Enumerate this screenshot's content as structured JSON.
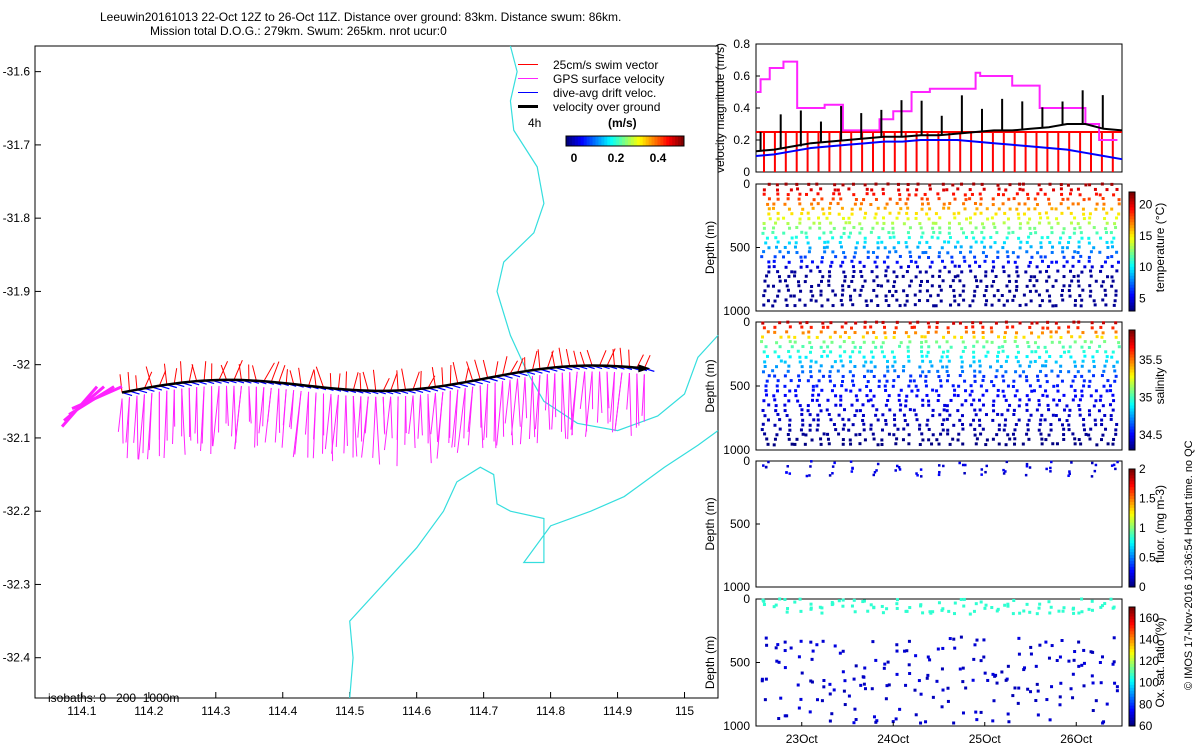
{
  "header": {
    "line1": "Leeuwin20161013 22-Oct 12Z to 26-Oct 11Z. Distance over ground: 83km. Distance swum: 86km.",
    "line2": "Mission total D.O.G.: 279km. Swum: 265km. nrot ucur:0"
  },
  "footer": {
    "isobaths": "isobaths: 0   200  1000m",
    "imprint": "© IMOS 17-Nov-2016 10:36:54 Hobart time. no QC"
  },
  "map": {
    "x_ticks": [
      "114.1",
      "114.2",
      "114.3",
      "114.4",
      "114.5",
      "114.6",
      "114.7",
      "114.8",
      "114.9",
      "115"
    ],
    "y_ticks": [
      "-31.6",
      "-31.7",
      "-31.8",
      "-31.9",
      "-32",
      "-32.1",
      "-32.2",
      "-32.3",
      "-32.4"
    ],
    "xlim": [
      114.03,
      115.05
    ],
    "ylim": [
      -32.455,
      -31.565
    ],
    "legend": {
      "swim": "25cm/s swim vector",
      "gps": "GPS surface velocity",
      "drift": "dive-avg drift veloc.",
      "vog": "velocity over ground",
      "time_tag": "4h",
      "colorbar_title": "(m/s)",
      "colorbar_ticks": [
        "0",
        "0.2",
        "0.4"
      ]
    },
    "colors": {
      "coast": "#35dede",
      "swim": "#ff0000",
      "gps": "#ff22ff",
      "drift": "#0000ff",
      "vog": "#000000"
    }
  },
  "chart_data": [
    {
      "type": "line",
      "title": "velocity magnitude",
      "ylabel": "velocity magnitude (m/s)",
      "y_ticks": [
        "0",
        "0.2",
        "0.4",
        "0.6",
        "0.8"
      ],
      "ylim": [
        0,
        0.8
      ],
      "xlim_days": [
        22.5,
        26.5
      ],
      "series": [
        {
          "name": "GPS surface velocity",
          "color": "#ff22ff",
          "x": [
            22.5,
            22.55,
            22.65,
            22.8,
            22.95,
            23.1,
            23.25,
            23.4,
            23.45,
            23.75,
            23.85,
            24.0,
            24.1,
            24.2,
            24.4,
            24.55,
            24.9,
            24.95,
            25.1,
            25.3,
            25.45,
            25.6,
            25.95,
            26.1,
            26.25,
            26.45
          ],
          "y": [
            0.5,
            0.58,
            0.65,
            0.69,
            0.4,
            0.4,
            0.42,
            0.42,
            0.26,
            0.26,
            0.33,
            0.38,
            0.38,
            0.5,
            0.52,
            0.52,
            0.62,
            0.6,
            0.6,
            0.54,
            0.54,
            0.4,
            0.4,
            0.3,
            0.2,
            0.2
          ]
        },
        {
          "name": "velocity over ground",
          "color": "#000000",
          "x": [
            22.5,
            22.7,
            22.9,
            23.1,
            23.3,
            23.5,
            23.7,
            23.9,
            24.1,
            24.3,
            24.5,
            24.7,
            24.9,
            25.1,
            25.3,
            25.5,
            25.7,
            25.9,
            26.1,
            26.3,
            26.5
          ],
          "y": [
            0.13,
            0.14,
            0.16,
            0.18,
            0.19,
            0.2,
            0.21,
            0.22,
            0.22,
            0.23,
            0.23,
            0.24,
            0.25,
            0.26,
            0.26,
            0.27,
            0.28,
            0.3,
            0.3,
            0.27,
            0.26
          ]
        },
        {
          "name": "dive-avg drift veloc.",
          "color": "#0000ff",
          "x": [
            22.5,
            22.7,
            22.9,
            23.1,
            23.3,
            23.5,
            23.7,
            23.9,
            24.1,
            24.3,
            24.5,
            24.7,
            24.9,
            25.1,
            25.3,
            25.5,
            25.7,
            25.9,
            26.1,
            26.3,
            26.5
          ],
          "y": [
            0.1,
            0.11,
            0.13,
            0.15,
            0.16,
            0.17,
            0.18,
            0.19,
            0.19,
            0.2,
            0.2,
            0.2,
            0.19,
            0.18,
            0.17,
            0.16,
            0.15,
            0.14,
            0.12,
            0.1,
            0.08
          ]
        },
        {
          "name": "25cm/s swim vector",
          "color": "#ff0000",
          "x": [
            22.5,
            26.5
          ],
          "y": [
            0.25,
            0.25
          ]
        }
      ]
    },
    {
      "type": "scatter",
      "title": "temperature",
      "ylabel": "Depth (m)",
      "cbar_label": "temperature (°C)",
      "cbar_ticks": [
        "5",
        "10",
        "15",
        "20"
      ],
      "cbar_range": [
        3,
        22
      ],
      "y_ticks": [
        "0",
        "500",
        "1000"
      ],
      "ylim": [
        1000,
        0
      ],
      "dives": 33,
      "surface_values": [
        20,
        20,
        19,
        20,
        21,
        20,
        20,
        21,
        21,
        20,
        21,
        21,
        21,
        20,
        21,
        21
      ]
    },
    {
      "type": "scatter",
      "title": "salinity",
      "ylabel": "Depth (m)",
      "cbar_label": "salinity",
      "cbar_ticks": [
        "34.5",
        "35",
        "35.5"
      ],
      "cbar_range": [
        34.3,
        35.9
      ],
      "y_ticks": [
        "0",
        "500",
        "1000"
      ],
      "ylim": [
        1000,
        0
      ],
      "dives": 33
    },
    {
      "type": "scatter",
      "title": "fluorescence",
      "ylabel": "Depth (m)",
      "cbar_label": "fluor. (mg m-3)",
      "cbar_ticks": [
        "0",
        "0.5",
        "1",
        "1.5",
        "2"
      ],
      "cbar_range": [
        0,
        2
      ],
      "y_ticks": [
        "0",
        "500",
        "1000"
      ],
      "ylim": [
        1000,
        0
      ]
    },
    {
      "type": "scatter",
      "title": "oxygen saturation",
      "ylabel": "Depth (m)",
      "cbar_label": "Ox. sat. ratio (%)",
      "cbar_ticks": [
        "60",
        "80",
        "100",
        "120",
        "140",
        "160"
      ],
      "cbar_range": [
        60,
        170
      ],
      "y_ticks": [
        "0",
        "500",
        "1000"
      ],
      "ylim": [
        1000,
        0
      ],
      "x_ticks": [
        "23Oct",
        "24Oct",
        "25Oct",
        "26Oct"
      ]
    }
  ]
}
